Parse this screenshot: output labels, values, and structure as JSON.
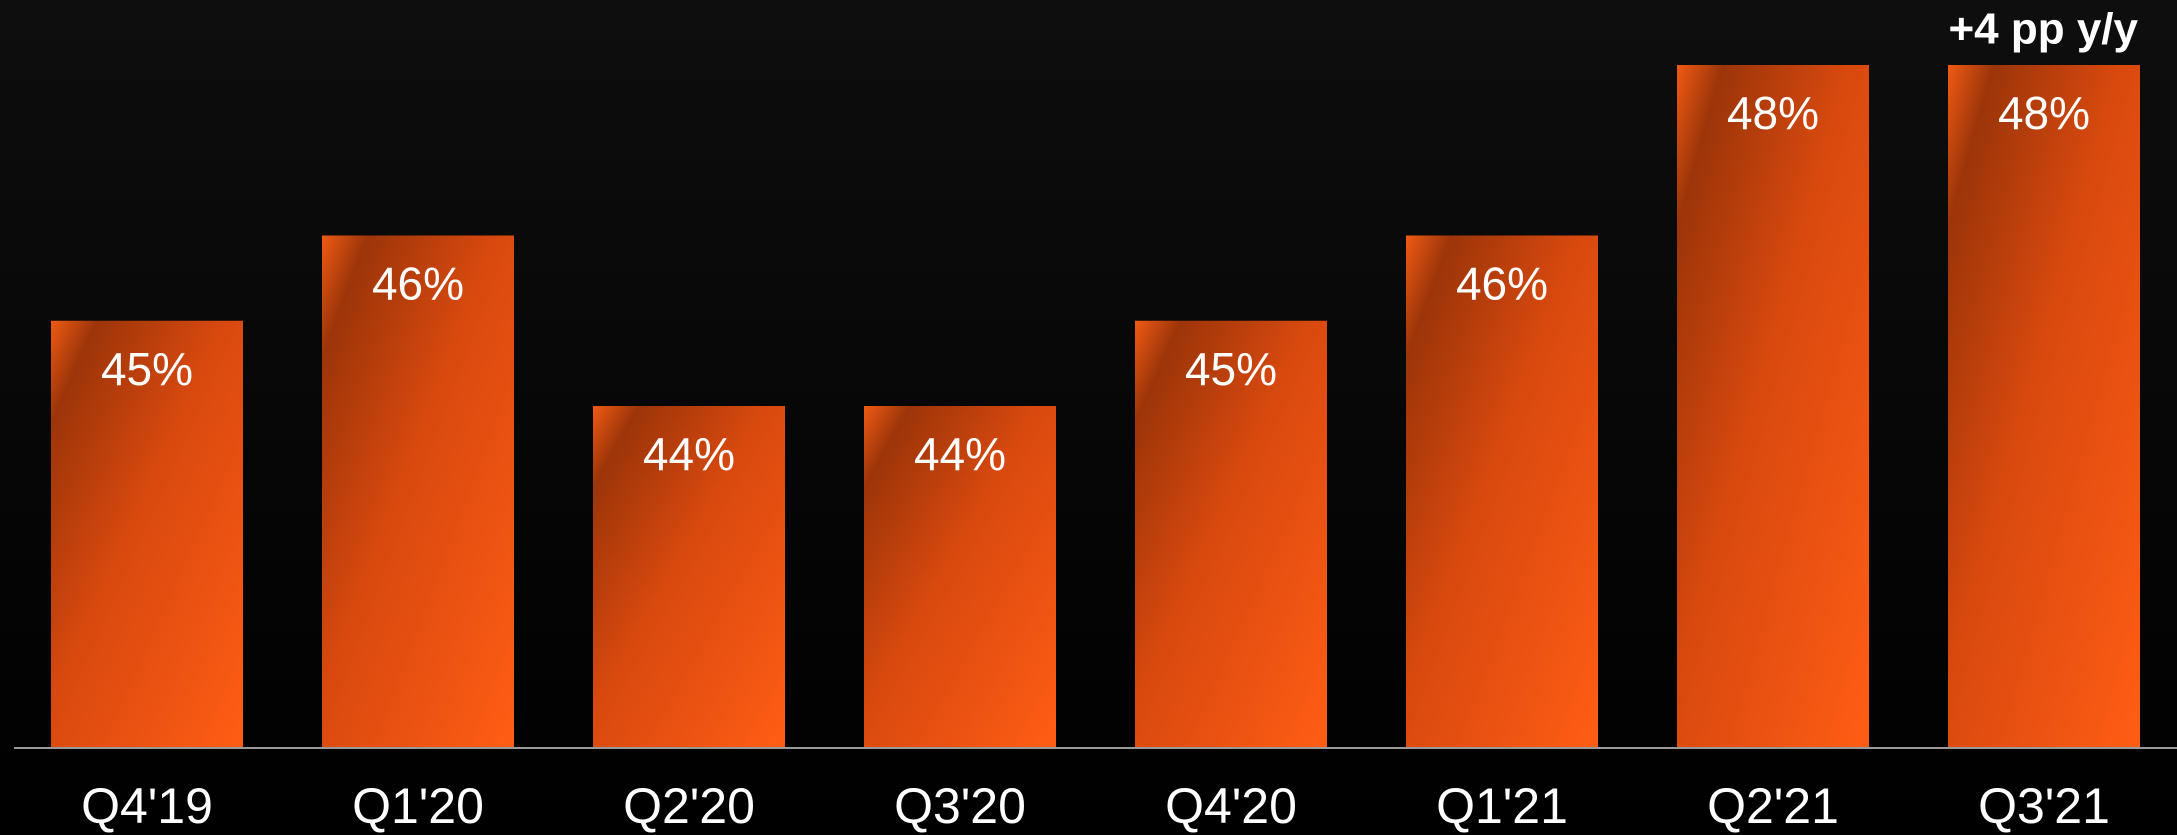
{
  "chart_data": {
    "type": "bar",
    "categories": [
      "Q4'19",
      "Q1'20",
      "Q2'20",
      "Q3'20",
      "Q4'20",
      "Q1'21",
      "Q2'21",
      "Q3'21"
    ],
    "values": [
      45,
      46,
      44,
      44,
      45,
      46,
      48,
      48
    ],
    "value_labels": [
      "45%",
      "46%",
      "44%",
      "44%",
      "45%",
      "46%",
      "48%",
      "48%"
    ],
    "annotation": "+4 pp y/y",
    "color": "#f05a14",
    "ylim": [
      40,
      48
    ]
  }
}
